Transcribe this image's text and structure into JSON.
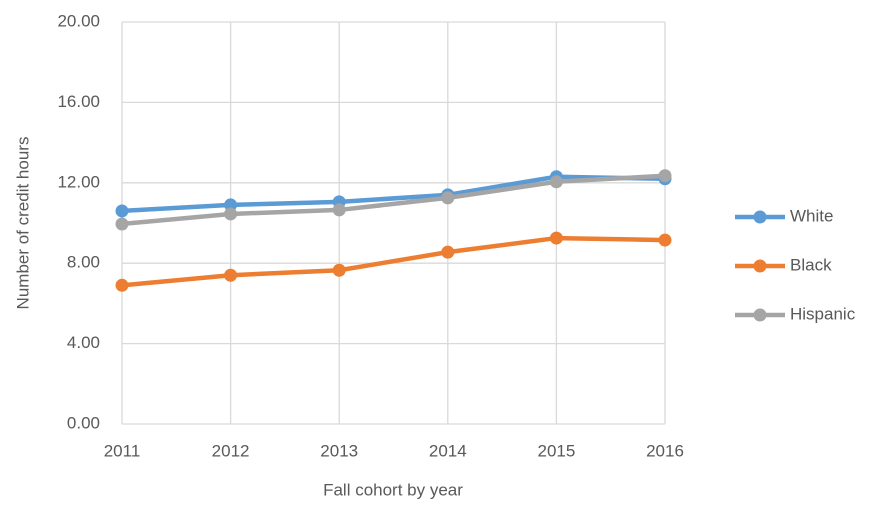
{
  "chart_data": {
    "type": "line",
    "x_label": "Fall cohort by year",
    "y_label": "Number of credit hours",
    "categories": [
      "2011",
      "2012",
      "2013",
      "2014",
      "2015",
      "2016"
    ],
    "series": [
      {
        "name": "White",
        "color": "#5b9bd5",
        "values": [
          10.6,
          10.9,
          11.05,
          11.4,
          12.3,
          12.2
        ]
      },
      {
        "name": "Black",
        "color": "#ed7d31",
        "values": [
          6.9,
          7.4,
          7.65,
          8.55,
          9.25,
          9.15
        ]
      },
      {
        "name": "Hispanic",
        "color": "#a5a5a5",
        "values": [
          9.95,
          10.45,
          10.65,
          11.25,
          12.05,
          12.35
        ]
      }
    ],
    "ylim": [
      0,
      20
    ],
    "yticks": [
      {
        "value": 0,
        "label": "0.00"
      },
      {
        "value": 4,
        "label": "4.00"
      },
      {
        "value": 8,
        "label": "8.00"
      },
      {
        "value": 12,
        "label": "12.00"
      },
      {
        "value": 16,
        "label": "16.00"
      },
      {
        "value": 20,
        "label": "20.00"
      }
    ],
    "grid": true,
    "legend": "right"
  }
}
